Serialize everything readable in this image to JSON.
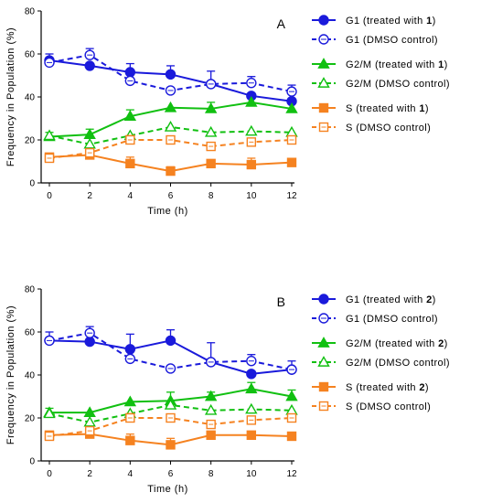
{
  "chart_data": [
    {
      "type": "line",
      "panel_label": "A",
      "xlabel": "Time (h)",
      "ylabel": "Frequency in Population (%)",
      "xlim": [
        0,
        12
      ],
      "ylim": [
        0,
        80
      ],
      "xticks": [
        "0",
        "2",
        "4",
        "6",
        "8",
        "10",
        "12"
      ],
      "yticks": [
        "0",
        "20",
        "40",
        "60",
        "80"
      ],
      "x": [
        0,
        2,
        4,
        6,
        8,
        10,
        12
      ],
      "grid": false,
      "legend_placement": "right",
      "series": [
        {
          "name": "G1 (treated with ",
          "name_bold": "1",
          "name_end": ")",
          "color": "#1a1adb",
          "dashed": false,
          "marker": "circle",
          "filled": true,
          "values": [
            57,
            54.5,
            51.5,
            50.5,
            46,
            40.5,
            38
          ],
          "errors": [
            3,
            0,
            4,
            4,
            0,
            0,
            0
          ]
        },
        {
          "name": "G1 (DMSO control)",
          "color": "#1a1adb",
          "dashed": true,
          "marker": "circle",
          "filled": false,
          "values": [
            56,
            59.5,
            47.5,
            43,
            46,
            46.5,
            42.5
          ],
          "errors": [
            0,
            3,
            0,
            0,
            6,
            3,
            3
          ]
        },
        {
          "name": "G2/M (treated with ",
          "name_bold": "1",
          "name_end": ")",
          "color": "#11c011",
          "dashed": false,
          "marker": "triangle",
          "filled": true,
          "values": [
            21.5,
            22.5,
            31,
            35,
            34.5,
            37.5,
            34.5
          ],
          "errors": [
            2,
            2.5,
            3,
            0,
            3,
            0,
            0
          ]
        },
        {
          "name": "G2/M (DMSO control)",
          "color": "#11c011",
          "dashed": true,
          "marker": "triangle",
          "filled": false,
          "values": [
            22,
            18,
            22,
            26,
            23.5,
            24,
            23.5
          ],
          "errors": [
            0,
            0,
            0,
            0,
            0,
            0,
            0
          ]
        },
        {
          "name": "S (treated with ",
          "name_bold": "1",
          "name_end": ")",
          "color": "#f58220",
          "dashed": false,
          "marker": "square",
          "filled": true,
          "values": [
            12,
            13,
            9,
            5.5,
            9,
            8.5,
            9.5
          ],
          "errors": [
            0,
            0,
            3,
            2,
            0,
            3,
            0
          ]
        },
        {
          "name": "S (DMSO control)",
          "color": "#f58220",
          "dashed": true,
          "marker": "square",
          "filled": false,
          "values": [
            11.5,
            14,
            20,
            20,
            17,
            19,
            20
          ],
          "errors": [
            2,
            0,
            2,
            0,
            0,
            0,
            0
          ]
        }
      ]
    },
    {
      "type": "line",
      "panel_label": "B",
      "xlabel": "Time (h)",
      "ylabel": "Frequency in Population (%)",
      "xlim": [
        0,
        12
      ],
      "ylim": [
        0,
        80
      ],
      "xticks": [
        "0",
        "2",
        "4",
        "6",
        "8",
        "10",
        "12"
      ],
      "yticks": [
        "0",
        "20",
        "40",
        "60",
        "80"
      ],
      "x": [
        0,
        2,
        4,
        6,
        8,
        10,
        12
      ],
      "grid": false,
      "legend_placement": "right",
      "series": [
        {
          "name": "G1 (treated with ",
          "name_bold": "2",
          "name_end": ")",
          "color": "#1a1adb",
          "dashed": false,
          "marker": "circle",
          "filled": true,
          "values": [
            56,
            55.5,
            52,
            56,
            46,
            40.5,
            42.5
          ],
          "errors": [
            4,
            0,
            7,
            5,
            9,
            0,
            4
          ]
        },
        {
          "name": "G1 (DMSO control)",
          "color": "#1a1adb",
          "dashed": true,
          "marker": "circle",
          "filled": false,
          "values": [
            56,
            59.5,
            47.5,
            43,
            46,
            46.5,
            42.5
          ],
          "errors": [
            0,
            3,
            0,
            0,
            0,
            3,
            0
          ]
        },
        {
          "name": "G2/M (treated with ",
          "name_bold": "2",
          "name_end": ")",
          "color": "#11c011",
          "dashed": false,
          "marker": "triangle",
          "filled": true,
          "values": [
            22.5,
            22.5,
            27.5,
            28,
            30,
            33.5,
            30
          ],
          "errors": [
            2,
            0,
            0,
            4,
            2,
            3,
            3
          ]
        },
        {
          "name": "G2/M (DMSO control)",
          "color": "#11c011",
          "dashed": true,
          "marker": "triangle",
          "filled": false,
          "values": [
            22,
            18,
            22,
            26,
            23.5,
            24,
            23.5
          ],
          "errors": [
            0,
            0,
            0,
            0,
            0,
            0,
            0
          ]
        },
        {
          "name": "S (treated with ",
          "name_bold": "2",
          "name_end": ")",
          "color": "#f58220",
          "dashed": false,
          "marker": "square",
          "filled": true,
          "values": [
            12,
            12.5,
            9.5,
            7.5,
            12,
            12,
            11.5
          ],
          "errors": [
            0,
            0,
            3,
            3,
            0,
            0,
            0
          ]
        },
        {
          "name": "S (DMSO control)",
          "color": "#f58220",
          "dashed": true,
          "marker": "square",
          "filled": false,
          "values": [
            11.5,
            14,
            20,
            20,
            17,
            19,
            20
          ],
          "errors": [
            2,
            0,
            2,
            0,
            0,
            0,
            0
          ]
        }
      ]
    }
  ]
}
